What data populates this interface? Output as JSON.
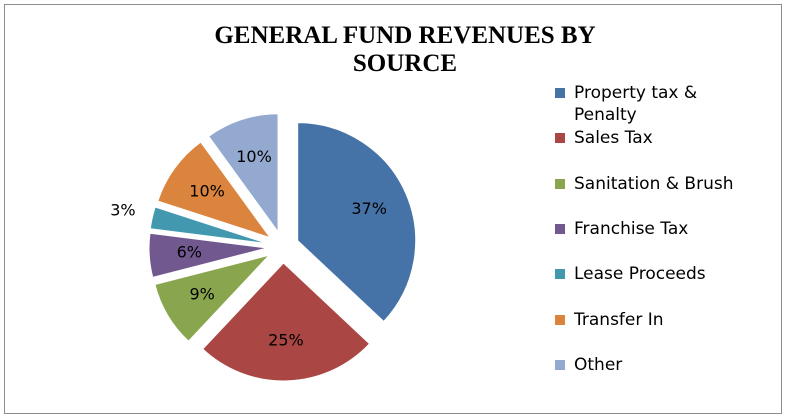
{
  "chart_data": {
    "type": "pie",
    "title": "GENERAL FUND REVENUES BY SOURCE",
    "categories": [
      "Property tax & Penalty",
      "Sales Tax",
      "Sanitation & Brush",
      "Franchise Tax",
      "Lease Proceeds",
      "Transfer In",
      "Other"
    ],
    "values": [
      37,
      25,
      9,
      6,
      3,
      10,
      10
    ],
    "value_labels": [
      "37%",
      "25%",
      "9%",
      "6%",
      "3%",
      "10%",
      "10%"
    ],
    "colors": [
      "#4572a7",
      "#aa4643",
      "#89a54e",
      "#71588f",
      "#4198af",
      "#db843d",
      "#93a9cf"
    ],
    "legend": "right"
  }
}
